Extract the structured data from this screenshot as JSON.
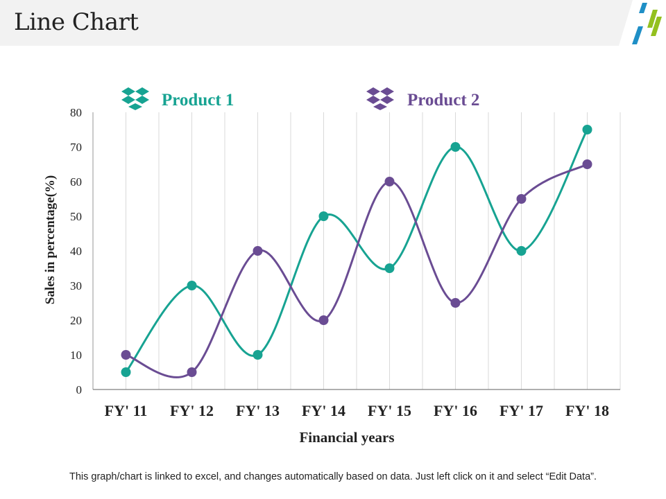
{
  "page": {
    "title": "Line Chart",
    "footer_note": "This graph/chart is linked to excel, and changes automatically based on data. Just left click on it and select “Edit Data”."
  },
  "colors": {
    "product1": "#17a392",
    "product2": "#6a4c93",
    "logo_blue": "#1f8fc6",
    "logo_green": "#93c01f"
  },
  "icons": {
    "legend_marker": "dropbox-icon"
  },
  "chart_data": {
    "type": "line",
    "title": "",
    "categories": [
      "FY' 11",
      "FY' 12",
      "FY' 13",
      "FY' 14",
      "FY' 15",
      "FY' 16",
      "FY' 17",
      "FY' 18"
    ],
    "series": [
      {
        "name": "Product 1",
        "values": [
          5,
          30,
          10,
          50,
          35,
          70,
          40,
          75
        ]
      },
      {
        "name": "Product 2",
        "values": [
          10,
          5,
          40,
          20,
          60,
          25,
          55,
          65
        ]
      }
    ],
    "xlabel": "Financial years",
    "ylabel": "Sales in percentage(%)",
    "ylim": [
      0,
      80
    ],
    "yticks": [
      0,
      10,
      20,
      30,
      40,
      50,
      60,
      70,
      80
    ],
    "smooth": true,
    "grid": "vertical",
    "legend": "top"
  }
}
